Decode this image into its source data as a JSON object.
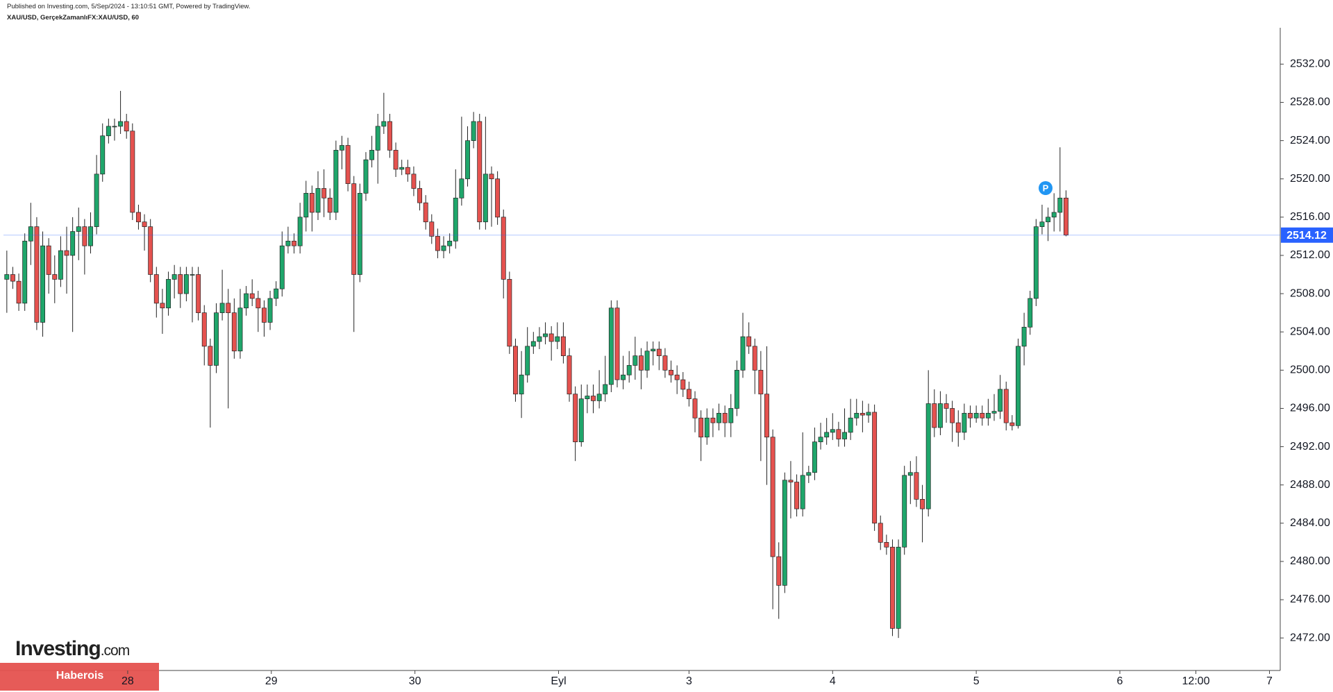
{
  "chart_data": {
    "type": "candlestick",
    "title": "Published on Investing.com, 5/Sep/2024 - 13:10:51 GMT, Powered by TradingView.",
    "subtitle": "XAU/USD, GerçekZamanlıFX:XAU/USD, 60",
    "up_color": "#1fa66b",
    "down_color": "#e5524f",
    "price_line_color": "#2962ff",
    "open": [
      2509.5,
      2510.0,
      2509.3,
      2507.0,
      2513.5,
      2515.0,
      2505.0,
      2513.0,
      2510.0,
      2509.5,
      2512.5,
      2512.0,
      2514.5,
      2515.0,
      2513.0,
      2515.0,
      2520.5,
      2524.5,
      2525.5,
      2525.5,
      2526.0,
      2525.0,
      2516.5,
      2515.5,
      2515.0,
      2510.0,
      2507.0,
      2506.5,
      2509.5,
      2510.0,
      2508.0,
      2510.0,
      2510.0,
      2506.0,
      2502.5,
      2500.5,
      2506.0,
      2507.0,
      2506.0,
      2502.0,
      2506.5,
      2508.0,
      2507.5,
      2506.5,
      2505.0,
      2507.5,
      2508.5,
      2513.0,
      2513.5,
      2513.0,
      2516.0,
      2518.5,
      2516.5,
      2519.0,
      2518.0,
      2516.5,
      2523.0,
      2523.5,
      2519.5,
      2510.0,
      2518.5,
      2522.0,
      2523.0,
      2525.5,
      2526.0,
      2523.0,
      2521.0,
      2521.2,
      2520.5,
      2519.0,
      2517.5,
      2515.5,
      2514.0,
      2512.5,
      2513.0,
      2513.5,
      2518.0,
      2520.0,
      2524.0,
      2526.0,
      2515.5,
      2520.5,
      2520.0,
      2516.0,
      2509.5,
      2502.5,
      2497.5,
      2499.5,
      2502.5,
      2503.0,
      2503.5,
      2503.8,
      2503.0,
      2503.5,
      2501.5,
      2497.5,
      2492.5,
      2497.0,
      2497.3,
      2496.8,
      2497.5,
      2498.5,
      2506.5,
      2499.0,
      2499.5,
      2500.5,
      2501.5,
      2500.0,
      2502.0,
      2502.2,
      2501.5,
      2500.0,
      2499.5,
      2499.0,
      2498.0,
      2497.0,
      2495.0,
      2493.0,
      2495.0,
      2494.5,
      2495.5,
      2494.5,
      2496.0,
      2500.0,
      2503.5,
      2502.5,
      2500.0,
      2497.5,
      2493.0,
      2480.5,
      2477.5,
      2488.5,
      2488.3,
      2485.5,
      2489.0,
      2489.3,
      2492.5,
      2493.0,
      2493.5,
      2493.8,
      2492.8,
      2493.5,
      2495.0,
      2495.5,
      2495.3,
      2495.6,
      2484.0,
      2482.0,
      2481.5,
      2473.0,
      2481.5,
      2489.0,
      2489.3,
      2486.5,
      2485.5,
      2496.5,
      2494.0,
      2496.5,
      2496.0,
      2494.5,
      2493.5,
      2495.5,
      2495.0,
      2495.5,
      2495.0,
      2495.5,
      2495.7,
      2498.0,
      2494.5,
      2494.2,
      2502.5,
      2504.5,
      2507.5,
      2515.0,
      2515.5,
      2516.0,
      2516.5,
      2518.0
    ],
    "high": [
      2512.5,
      2510.8,
      2510.1,
      2514.3,
      2517.5,
      2516.0,
      2514.5,
      2513.8,
      2512.0,
      2514.0,
      2515.0,
      2516.0,
      2517.0,
      2515.8,
      2516.5,
      2522.5,
      2525.8,
      2526.3,
      2526.3,
      2529.2,
      2526.8,
      2525.8,
      2517.3,
      2516.3,
      2515.8,
      2510.8,
      2508.5,
      2510.3,
      2511.0,
      2510.8,
      2510.8,
      2510.8,
      2510.8,
      2506.8,
      2503.3,
      2507.0,
      2510.5,
      2508.5,
      2507.5,
      2508.5,
      2508.8,
      2509.5,
      2508.3,
      2507.3,
      2508.3,
      2509.3,
      2514.5,
      2515.0,
      2514.3,
      2517.5,
      2519.8,
      2519.3,
      2520.8,
      2521.0,
      2519.0,
      2524.0,
      2524.5,
      2524.3,
      2520.3,
      2519.5,
      2522.8,
      2524.5,
      2526.8,
      2529.0,
      2526.8,
      2523.8,
      2522.0,
      2522.0,
      2521.3,
      2519.8,
      2518.3,
      2516.3,
      2514.8,
      2514.0,
      2514.3,
      2521.0,
      2526.5,
      2525.5,
      2527.0,
      2526.8,
      2526.5,
      2521.3,
      2520.8,
      2516.8,
      2510.3,
      2503.3,
      2502.0,
      2504.5,
      2504.0,
      2504.5,
      2505.0,
      2504.6,
      2505.0,
      2505.0,
      2502.3,
      2498.3,
      2498.5,
      2498.5,
      2498.5,
      2500.0,
      2501.5,
      2507.3,
      2507.3,
      2501.5,
      2502.0,
      2503.5,
      2502.3,
      2503.0,
      2503.0,
      2503.0,
      2502.3,
      2501.0,
      2500.5,
      2499.8,
      2498.8,
      2497.8,
      2495.8,
      2496.0,
      2496.0,
      2496.5,
      2496.3,
      2497.5,
      2501.0,
      2506.0,
      2505.0,
      2503.3,
      2502.0,
      2502.5,
      2493.8,
      2482.0,
      2489.3,
      2490.5,
      2489.1,
      2493.5,
      2490.0,
      2494.0,
      2494.5,
      2495.0,
      2495.5,
      2494.6,
      2496.0,
      2497.0,
      2497.0,
      2496.8,
      2496.5,
      2496.4,
      2484.8,
      2482.8,
      2482.3,
      2482.3,
      2490.0,
      2490.5,
      2491.0,
      2488.0,
      2500.0,
      2498.0,
      2497.8,
      2497.5,
      2496.8,
      2495.8,
      2496.5,
      2496.3,
      2496.3,
      2496.3,
      2497.0,
      2497.5,
      2499.5,
      2498.8,
      2495.3,
      2503.3,
      2506.0,
      2508.3,
      2515.8,
      2517.3,
      2517.0,
      2518.5,
      2523.3,
      2518.8
    ],
    "low": [
      2506.0,
      2508.5,
      2506.2,
      2506.2,
      2511.0,
      2504.2,
      2503.5,
      2508.0,
      2507.0,
      2508.7,
      2508.0,
      2504.0,
      2511.5,
      2510.0,
      2512.2,
      2514.2,
      2519.7,
      2523.7,
      2524.0,
      2524.7,
      2524.2,
      2515.7,
      2514.7,
      2512.5,
      2509.2,
      2505.5,
      2503.8,
      2505.7,
      2507.5,
      2506.5,
      2507.2,
      2505.0,
      2505.2,
      2500.5,
      2494.0,
      2499.7,
      2505.2,
      2496.0,
      2501.2,
      2501.2,
      2505.7,
      2506.7,
      2504.0,
      2503.5,
      2504.2,
      2506.7,
      2507.7,
      2512.2,
      2512.2,
      2512.2,
      2514.5,
      2514.5,
      2515.7,
      2516.0,
      2515.7,
      2515.7,
      2521.0,
      2518.7,
      2504.0,
      2509.2,
      2517.7,
      2521.2,
      2519.5,
      2524.7,
      2522.2,
      2520.2,
      2520.4,
      2519.7,
      2518.2,
      2516.7,
      2514.7,
      2513.2,
      2511.7,
      2511.7,
      2512.2,
      2512.7,
      2517.2,
      2519.2,
      2523.2,
      2514.7,
      2514.7,
      2515.0,
      2515.2,
      2507.5,
      2501.7,
      2496.7,
      2495.0,
      2498.7,
      2501.7,
      2502.2,
      2502.7,
      2501.0,
      2502.2,
      2500.7,
      2496.7,
      2490.5,
      2492.0,
      2495.5,
      2495.5,
      2496.0,
      2496.7,
      2497.7,
      2498.2,
      2498.0,
      2498.7,
      2499.0,
      2498.0,
      2499.2,
      2500.5,
      2500.0,
      2499.2,
      2498.7,
      2497.5,
      2497.2,
      2496.2,
      2493.5,
      2490.5,
      2492.2,
      2493.0,
      2493.7,
      2493.0,
      2493.0,
      2495.2,
      2499.2,
      2501.7,
      2497.5,
      2490.5,
      2488.0,
      2475.0,
      2474.0,
      2476.7,
      2484.5,
      2484.7,
      2484.7,
      2488.2,
      2488.5,
      2491.7,
      2492.2,
      2492.7,
      2492.0,
      2492.0,
      2492.7,
      2494.2,
      2493.5,
      2494.5,
      2483.2,
      2481.2,
      2480.7,
      2472.2,
      2472.0,
      2480.7,
      2486.0,
      2485.7,
      2482.0,
      2484.7,
      2493.0,
      2493.2,
      2494.5,
      2492.5,
      2492.0,
      2492.7,
      2494.0,
      2494.5,
      2494.2,
      2494.2,
      2494.7,
      2494.9,
      2493.7,
      2493.7,
      2493.9,
      2500.5,
      2503.7,
      2506.7,
      2514.2,
      2513.5,
      2514.5,
      2514.5,
      2514.0
    ],
    "close": [
      2510.0,
      2509.3,
      2507.0,
      2513.5,
      2515.0,
      2505.0,
      2513.0,
      2510.0,
      2509.5,
      2512.5,
      2512.0,
      2514.5,
      2515.0,
      2513.0,
      2515.0,
      2520.5,
      2524.5,
      2525.5,
      2525.5,
      2526.0,
      2525.0,
      2516.5,
      2515.5,
      2515.0,
      2510.0,
      2507.0,
      2506.5,
      2509.5,
      2510.0,
      2508.0,
      2510.0,
      2510.0,
      2506.0,
      2502.5,
      2500.5,
      2506.0,
      2507.0,
      2506.0,
      2502.0,
      2506.5,
      2508.0,
      2507.5,
      2506.5,
      2505.0,
      2507.5,
      2508.5,
      2513.0,
      2513.5,
      2513.0,
      2516.0,
      2518.5,
      2516.5,
      2519.0,
      2518.0,
      2516.5,
      2523.0,
      2523.5,
      2519.5,
      2510.0,
      2518.5,
      2522.0,
      2523.0,
      2525.5,
      2526.0,
      2523.0,
      2521.0,
      2521.2,
      2520.5,
      2519.0,
      2517.5,
      2515.5,
      2514.0,
      2512.5,
      2513.0,
      2513.5,
      2518.0,
      2520.0,
      2524.0,
      2526.0,
      2515.5,
      2520.5,
      2520.0,
      2516.0,
      2509.5,
      2502.5,
      2497.5,
      2499.5,
      2502.5,
      2503.0,
      2503.5,
      2503.8,
      2503.0,
      2503.5,
      2501.5,
      2497.5,
      2492.5,
      2497.0,
      2497.3,
      2496.8,
      2497.5,
      2498.5,
      2506.5,
      2499.0,
      2499.5,
      2500.5,
      2501.5,
      2500.0,
      2502.0,
      2502.2,
      2501.5,
      2500.0,
      2499.5,
      2499.0,
      2498.0,
      2497.0,
      2495.0,
      2493.0,
      2495.0,
      2494.5,
      2495.5,
      2494.5,
      2496.0,
      2500.0,
      2503.5,
      2502.5,
      2500.0,
      2497.5,
      2493.0,
      2480.5,
      2477.5,
      2488.5,
      2488.3,
      2485.5,
      2489.0,
      2489.3,
      2492.5,
      2493.0,
      2493.5,
      2493.8,
      2492.8,
      2493.5,
      2495.0,
      2495.5,
      2495.3,
      2495.6,
      2484.0,
      2482.0,
      2481.5,
      2473.0,
      2481.5,
      2489.0,
      2489.3,
      2486.5,
      2485.5,
      2496.5,
      2494.0,
      2496.5,
      2496.0,
      2494.5,
      2493.5,
      2495.5,
      2495.0,
      2495.5,
      2495.0,
      2495.5,
      2495.7,
      2498.0,
      2494.5,
      2494.2,
      2502.5,
      2504.5,
      2507.5,
      2515.0,
      2515.5,
      2516.0,
      2516.5,
      2518.0,
      2514.12
    ],
    "xlim": [
      -0.56,
      212.8
    ],
    "xticks": [
      {
        "value": 20.2,
        "label": "28"
      },
      {
        "value": 44.2,
        "label": "29"
      },
      {
        "value": 68.2,
        "label": "30"
      },
      {
        "value": 92.2,
        "label": "Eyl"
      },
      {
        "value": 114,
        "label": "3"
      },
      {
        "value": 138,
        "label": "4"
      },
      {
        "value": 162,
        "label": "5"
      },
      {
        "value": 186,
        "label": "6"
      },
      {
        "value": 198.7,
        "label": "12:00"
      },
      {
        "value": 211,
        "label": "7"
      }
    ],
    "ylim": [
      2468.6,
      2535.8
    ],
    "yticks": [
      {
        "value": 2472,
        "label": "2472.00"
      },
      {
        "value": 2476,
        "label": "2476.00"
      },
      {
        "value": 2480,
        "label": "2480.00"
      },
      {
        "value": 2484,
        "label": "2484.00"
      },
      {
        "value": 2488,
        "label": "2488.00"
      },
      {
        "value": 2492,
        "label": "2492.00"
      },
      {
        "value": 2496,
        "label": "2496.00"
      },
      {
        "value": 2500,
        "label": "2500.00"
      },
      {
        "value": 2504,
        "label": "2504.00"
      },
      {
        "value": 2508,
        "label": "2508.00"
      },
      {
        "value": 2512,
        "label": "2512.00"
      },
      {
        "value": 2516,
        "label": "2516.00"
      },
      {
        "value": 2520,
        "label": "2520.00"
      },
      {
        "value": 2524,
        "label": "2524.00"
      },
      {
        "value": 2528,
        "label": "2528.00"
      },
      {
        "value": 2532,
        "label": "2532.00"
      }
    ],
    "marker_label": "P"
  },
  "watermark": {
    "logo": "Investing",
    "logo_suffix": ".com",
    "banner": "Haberois"
  }
}
